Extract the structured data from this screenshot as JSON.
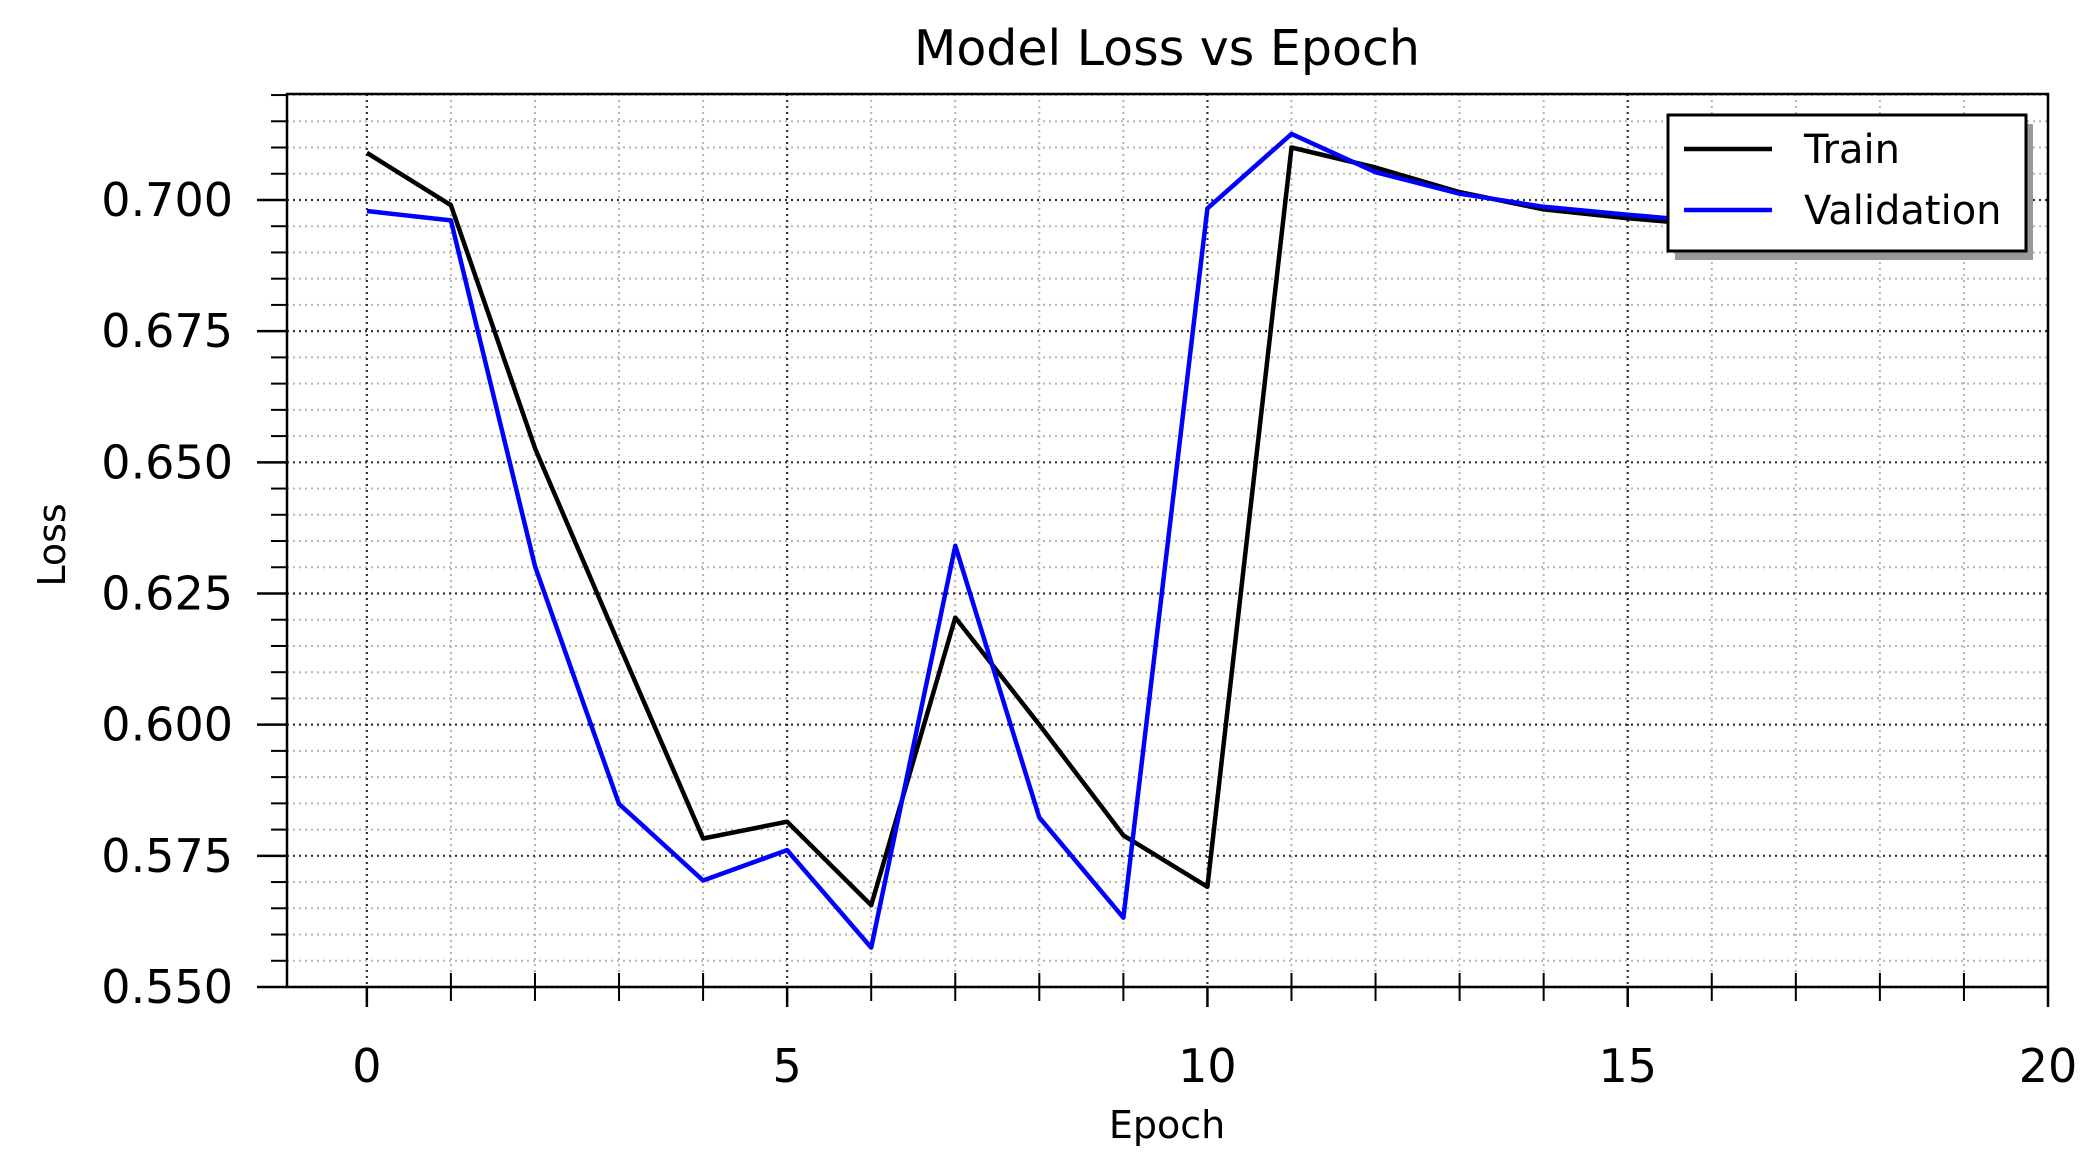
{
  "chart_data": {
    "type": "line",
    "title": "Model Loss vs Epoch",
    "xlabel": "Epoch",
    "ylabel": "Loss",
    "xlim": [
      -0.95,
      20
    ],
    "ylim": [
      0.55,
      0.7202
    ],
    "xticks": [
      0,
      5,
      10,
      15,
      20
    ],
    "xtick_labels": [
      "0",
      "5",
      "10",
      "15",
      "20"
    ],
    "yticks": [
      0.55,
      0.575,
      0.6,
      0.625,
      0.65,
      0.675,
      0.7
    ],
    "ytick_labels": [
      "0.550",
      "0.575",
      "0.600",
      "0.625",
      "0.650",
      "0.675",
      "0.700"
    ],
    "grid": true,
    "legend_position": "upper right",
    "x": [
      0,
      1,
      2,
      3,
      4,
      5,
      6,
      7,
      8,
      9,
      10,
      11,
      12,
      13,
      14,
      15,
      16,
      17,
      18,
      19
    ],
    "series": [
      {
        "name": "Train",
        "color": "#000000",
        "values": [
          0.709,
          0.699,
          0.6527,
          0.6153,
          0.5783,
          0.5815,
          0.5656,
          0.6204,
          0.6,
          0.5789,
          0.5691,
          0.71,
          0.7062,
          0.7015,
          0.6982,
          0.6965,
          0.6952,
          0.6955,
          0.696,
          0.6955
        ]
      },
      {
        "name": "Validation",
        "color": "#0000ff",
        "values": [
          0.6979,
          0.6961,
          0.6302,
          0.5849,
          0.5703,
          0.5761,
          0.5575,
          0.6341,
          0.5823,
          0.5632,
          0.6984,
          0.7126,
          0.7053,
          0.7012,
          0.6987,
          0.6972,
          0.6958,
          0.6955,
          0.6958,
          0.6956
        ]
      }
    ]
  }
}
